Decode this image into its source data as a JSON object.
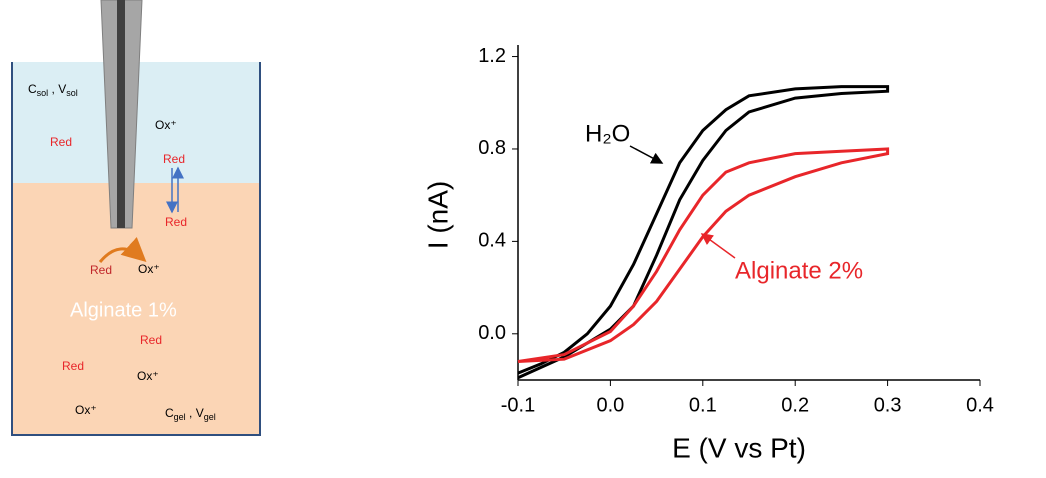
{
  "diagram": {
    "solution_label": [
      "C",
      "sol",
      " , V",
      "sol"
    ],
    "gel_label": [
      "C",
      "gel",
      " , V",
      "gel"
    ],
    "labels": [
      "Red",
      "Ox⁺",
      "Red",
      "Red",
      "Red",
      "Ox⁺",
      "Alginate 1%",
      "Red",
      "Red",
      "Ox⁺",
      "Ox⁺"
    ]
  },
  "chart_data": {
    "type": "line",
    "x_label": "E (V vs Pt)",
    "y_label": "I (nA)",
    "xlim": [
      -0.1,
      0.4
    ],
    "xticks": [
      -0.1,
      {
        "value": 0,
        "label": "0.0"
      },
      0.1,
      0.2,
      0.3,
      0.4
    ],
    "ylim": [
      -0.2,
      1.25
    ],
    "yticks": [
      {
        "value": 0,
        "label": "0.0"
      },
      0.4,
      0.8,
      1.2
    ],
    "annotations": [
      {
        "text": "H₂O",
        "color": "#000000"
      },
      {
        "text": "Alginate 2%",
        "color": "#e8262a"
      }
    ],
    "series": [
      {
        "name": "H₂O",
        "color": "#000000",
        "x": [
          -0.1,
          -0.05,
          0.0,
          0.025,
          0.05,
          0.075,
          0.1,
          0.125,
          0.15,
          0.2,
          0.25,
          0.3,
          0.3,
          0.25,
          0.2,
          0.15,
          0.125,
          0.1,
          0.075,
          0.05,
          0.025,
          0.0,
          -0.025,
          -0.05,
          -0.075,
          -0.1
        ],
        "values": [
          -0.19,
          -0.1,
          0.02,
          0.12,
          0.34,
          0.58,
          0.75,
          0.88,
          0.96,
          1.02,
          1.04,
          1.05,
          1.07,
          1.07,
          1.06,
          1.03,
          0.97,
          0.88,
          0.74,
          0.52,
          0.3,
          0.12,
          0.0,
          -0.08,
          -0.13,
          -0.17
        ]
      },
      {
        "name": "Alginate 2%",
        "color": "#e8262a",
        "x": [
          -0.1,
          -0.05,
          0.0,
          0.025,
          0.05,
          0.075,
          0.1,
          0.125,
          0.15,
          0.2,
          0.25,
          0.3,
          0.3,
          0.25,
          0.2,
          0.15,
          0.125,
          0.1,
          0.075,
          0.05,
          0.025,
          0.0,
          -0.05,
          -0.1
        ],
        "values": [
          -0.12,
          -0.11,
          -0.03,
          0.04,
          0.14,
          0.28,
          0.42,
          0.53,
          0.6,
          0.68,
          0.74,
          0.78,
          0.8,
          0.79,
          0.78,
          0.74,
          0.7,
          0.6,
          0.45,
          0.27,
          0.12,
          0.01,
          -0.09,
          -0.12
        ]
      }
    ]
  }
}
